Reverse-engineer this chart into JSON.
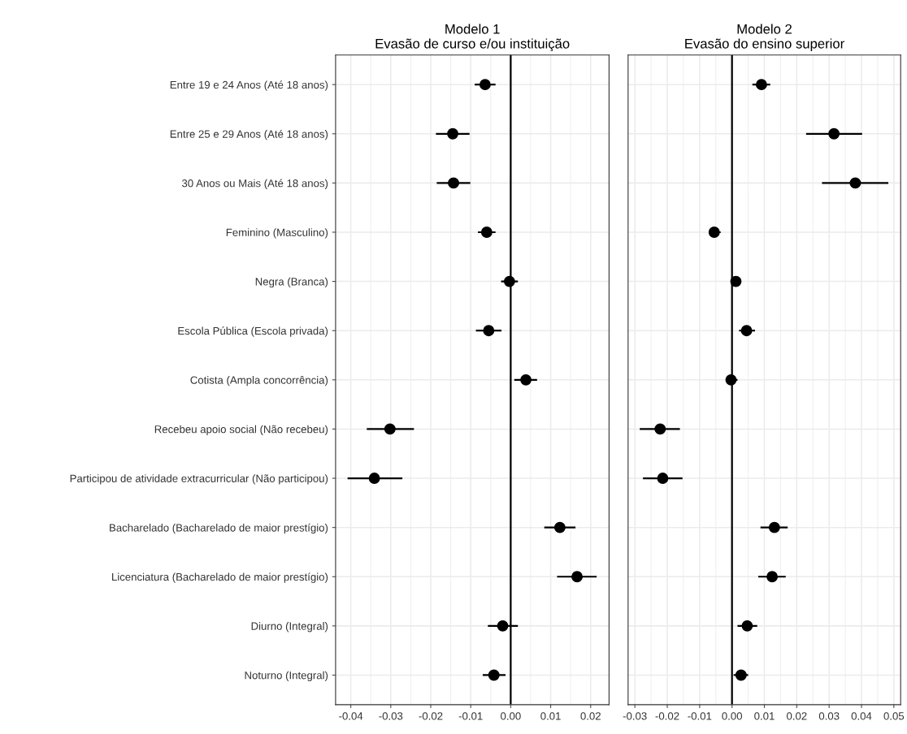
{
  "chart_data": [
    {
      "type": "scatter",
      "orientation": "horizontal",
      "title": "Modelo 1\nEvasão de curso e/ou instituição",
      "categories": [
        "Entre 19 e 24 Anos (Até 18 anos)",
        "Entre 25 e 29 Anos (Até 18 anos)",
        "30 Anos ou Mais (Até 18 anos)",
        "Feminino (Masculino)",
        "Negra (Branca)",
        "Escola Pública (Escola privada)",
        "Cotista (Ampla concorrência)",
        "Recebeu apoio social (Não recebeu)",
        "Participou de atividade extracurricular (Não participou)",
        "Bacharelado (Bacharelado de maior prestígio)",
        "Licenciatura (Bacharelado de maior prestígio)",
        "Diurno (Integral)",
        "Noturno (Integral)"
      ],
      "values": [
        -0.0064,
        -0.0145,
        -0.0143,
        -0.006,
        -0.0003,
        -0.0055,
        0.0038,
        -0.0302,
        -0.0341,
        0.0123,
        0.0166,
        -0.002,
        -0.0042
      ],
      "errors": [
        [
          -0.009,
          -0.0038
        ],
        [
          -0.0187,
          -0.0103
        ],
        [
          -0.0185,
          -0.0101
        ],
        [
          -0.0082,
          -0.0038
        ],
        [
          -0.0024,
          0.0018
        ],
        [
          -0.0087,
          -0.0023
        ],
        [
          0.0009,
          0.0066
        ],
        [
          -0.036,
          -0.0242
        ],
        [
          -0.0408,
          -0.0271
        ],
        [
          0.0084,
          0.0162
        ],
        [
          0.0116,
          0.0215
        ],
        [
          -0.0057,
          0.0018
        ],
        [
          -0.007,
          -0.0013
        ]
      ],
      "color": "#000000",
      "marker": "circle",
      "xlim": [
        -0.0438,
        0.0246
      ],
      "xticks": [
        -0.04,
        -0.03,
        -0.02,
        -0.01,
        {
          "value": 0,
          "label": "0.00"
        },
        0.01,
        0.02
      ],
      "ref_lines": [
        {
          "axis": "x",
          "value": 0,
          "label": null,
          "color": "#000000"
        }
      ],
      "grid": true
    },
    {
      "type": "scatter",
      "orientation": "horizontal",
      "title": "Modelo 2\nEvasão do ensino superior",
      "categories": [
        null,
        null,
        null,
        null,
        null,
        null,
        null,
        null,
        null,
        null,
        null,
        null,
        null
      ],
      "values": [
        0.0091,
        0.0315,
        0.0381,
        -0.0055,
        0.0012,
        0.0045,
        -0.0003,
        -0.0222,
        -0.0214,
        0.0131,
        0.0124,
        0.0047,
        0.0028
      ],
      "errors": [
        [
          0.0063,
          0.0118
        ],
        [
          0.0229,
          0.0402
        ],
        [
          0.0278,
          0.0483
        ],
        [
          -0.0071,
          -0.0035
        ],
        null,
        [
          0.0022,
          0.0071
        ],
        [
          -0.0018,
          0.0017
        ],
        [
          -0.0285,
          -0.0161
        ],
        [
          -0.0275,
          -0.0153
        ],
        [
          0.0088,
          0.0172
        ],
        [
          0.0081,
          0.0166
        ],
        [
          0.0017,
          0.0078
        ],
        [
          0.0005,
          0.005
        ]
      ],
      "color": "#000000",
      "marker": "circle",
      "xlim": [
        -0.0321,
        0.0521
      ],
      "xticks": [
        -0.03,
        -0.02,
        -0.01,
        {
          "value": 0,
          "label": "0.00"
        },
        0.01,
        0.02,
        0.03,
        0.04,
        0.05
      ],
      "ref_lines": [
        {
          "axis": "x",
          "value": 0,
          "label": null,
          "color": "#000000"
        }
      ],
      "grid": true,
      "tick_labels": "x"
    }
  ]
}
